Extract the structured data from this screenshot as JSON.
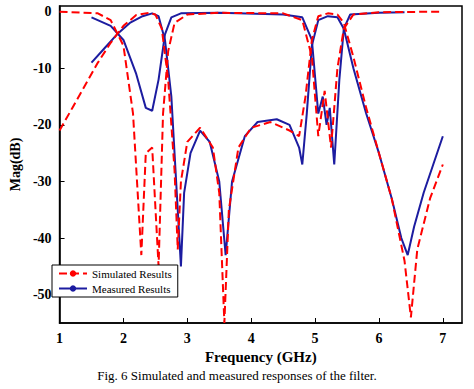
{
  "chart_data": {
    "type": "line",
    "title": "Fig. 6 Simulated and measured responses of the filter.",
    "x_label": "Frequency (GHz)",
    "y_label": "Mag(dB)",
    "xlim": [
      1,
      7.3
    ],
    "xticks": [
      1,
      2,
      3,
      4,
      5,
      6,
      7
    ],
    "ylim": [
      -55,
      1
    ],
    "yticks": [
      -50,
      -40,
      -30,
      -20,
      -10,
      0
    ],
    "grid": false,
    "legend": "lower left",
    "series": [
      {
        "name": "Simulated Results",
        "color": "#ff0000",
        "line_style": "dashed",
        "x": [
          1.0,
          1.2,
          1.4,
          1.6,
          1.8,
          2.0,
          2.2,
          2.4,
          2.5,
          2.6,
          2.7,
          2.8,
          2.85,
          2.9,
          3.0,
          3.2,
          3.4,
          3.5,
          3.58,
          3.65,
          3.8,
          4.0,
          4.3,
          4.6,
          4.75,
          4.85,
          4.95,
          5.05,
          5.2,
          5.35,
          5.45,
          5.6,
          5.8,
          6.0,
          6.2,
          6.4,
          6.5,
          6.6,
          6.8,
          7.0
        ],
        "values": [
          -21,
          -17,
          -13,
          -9,
          -5.5,
          -2.5,
          -0.6,
          -0.2,
          -0.5,
          -3,
          -12,
          -28,
          -42,
          -30,
          -23,
          -20.5,
          -24,
          -32,
          -55,
          -35,
          -24,
          -20.5,
          -19.5,
          -21,
          -22,
          -15,
          -5,
          -0.8,
          -0.3,
          -0.5,
          -2,
          -8,
          -17,
          -25,
          -33,
          -44,
          -54,
          -42,
          -33,
          -27
        ]
      },
      {
        "name": "Simulated Results",
        "color": "#ff0000",
        "line_style": "dashed",
        "x": [
          1.0,
          1.6,
          1.8,
          2.0,
          2.15,
          2.28,
          2.35,
          2.45,
          2.55,
          2.62,
          2.7,
          2.8,
          3.0,
          3.5,
          4.5,
          4.8,
          4.95,
          5.05,
          5.15,
          5.25,
          5.35,
          5.45,
          5.6,
          6.0,
          7.0
        ],
        "values": [
          0,
          -0.3,
          -1.5,
          -6,
          -18,
          -43,
          -25,
          -24,
          -45,
          -18,
          -7,
          -2,
          -0.5,
          -0.2,
          -0.3,
          -1.5,
          -8,
          -22,
          -14,
          -24,
          -10,
          -3,
          -0.5,
          -0.1,
          0
        ]
      },
      {
        "name": "Measured Results",
        "color": "#1c1ca0",
        "line_style": "solid",
        "x": [
          1.5,
          1.7,
          1.9,
          2.1,
          2.3,
          2.45,
          2.55,
          2.65,
          2.75,
          2.85,
          2.9,
          2.95,
          3.05,
          3.2,
          3.35,
          3.5,
          3.6,
          3.7,
          3.9,
          4.1,
          4.4,
          4.6,
          4.75,
          4.8,
          4.87,
          4.95,
          5.05,
          5.2,
          5.35,
          5.45,
          5.6,
          5.8,
          6.0,
          6.2,
          6.35,
          6.45,
          6.55,
          6.7,
          6.85,
          7.0
        ],
        "values": [
          -9,
          -6.5,
          -4,
          -2,
          -0.8,
          -0.3,
          -0.8,
          -5,
          -15,
          -35,
          -45,
          -32,
          -25,
          -21,
          -23,
          -30,
          -43,
          -30,
          -22,
          -19.5,
          -19,
          -20,
          -24,
          -27,
          -18,
          -6,
          -1.5,
          -0.8,
          -1,
          -3,
          -10,
          -18,
          -25,
          -33,
          -40,
          -43,
          -38,
          -32,
          -27,
          -22
        ]
      },
      {
        "name": "Measured Results",
        "color": "#1c1ca0",
        "line_style": "solid",
        "x": [
          1.5,
          1.8,
          2.0,
          2.2,
          2.35,
          2.45,
          2.55,
          2.65,
          2.75,
          2.9,
          3.5,
          4.5,
          4.8,
          4.95,
          5.05,
          5.12,
          5.18,
          5.23,
          5.3,
          5.38,
          5.45,
          5.55,
          6.0,
          6.4
        ],
        "values": [
          -1,
          -2.5,
          -5,
          -11,
          -17,
          -17.5,
          -12,
          -4,
          -1,
          -0.3,
          -0.2,
          -0.5,
          -1,
          -5,
          -18,
          -15,
          -20,
          -17,
          -27,
          -12,
          -3,
          -0.5,
          -0.2,
          -0.1
        ]
      }
    ]
  }
}
